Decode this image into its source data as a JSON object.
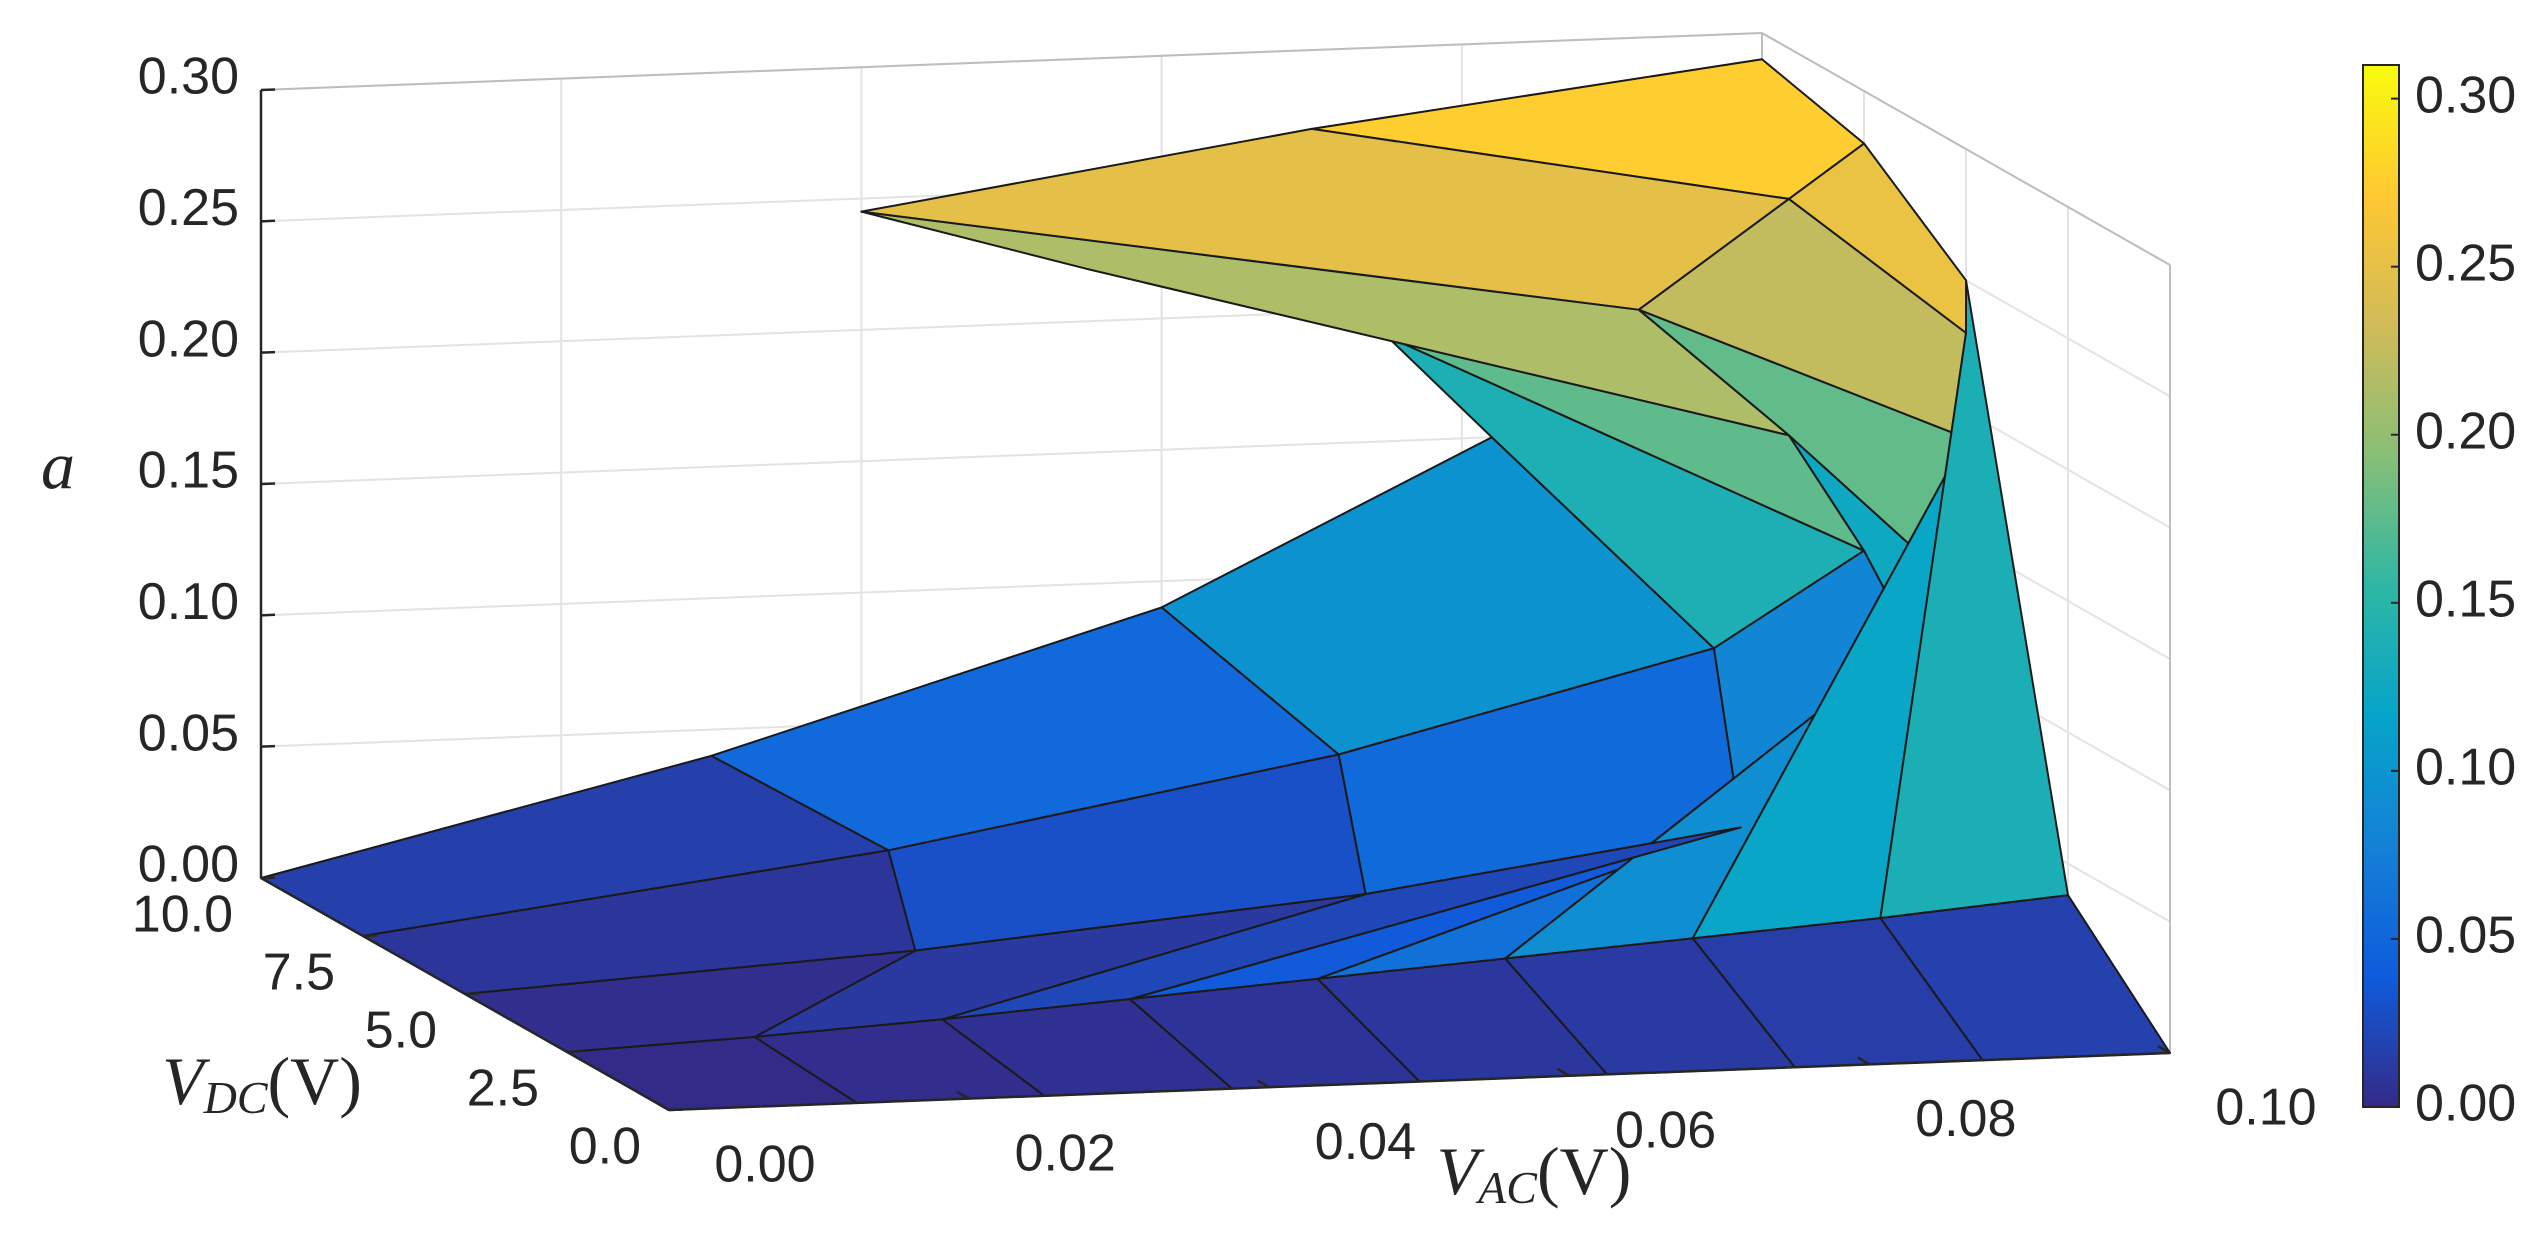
{
  "chart_data": {
    "type": "surface",
    "zlabel": "a",
    "xlabel": {
      "main": "V",
      "sub": "AC",
      "unit": "(V)"
    },
    "ylabel": {
      "main": "V",
      "sub": "DC",
      "unit": "(V)"
    },
    "xlim": [
      0,
      0.1
    ],
    "ylim": [
      0,
      10
    ],
    "zlim": [
      0,
      0.3
    ],
    "clim": [
      0,
      0.31
    ],
    "xticks": [
      {
        "value": 0,
        "label": "0.00"
      },
      0.02,
      0.04,
      0.06,
      0.08,
      {
        "value": 0.1,
        "label": "0.10"
      }
    ],
    "yticks": [
      {
        "value": 0,
        "label": "0.0"
      },
      2.5,
      {
        "value": 5,
        "label": "5.0"
      },
      7.5,
      {
        "value": 10,
        "label": "10.0"
      }
    ],
    "zticks": [
      {
        "value": 0,
        "label": "0.00"
      },
      0.05,
      {
        "value": 0.1,
        "label": "0.10"
      },
      0.15,
      {
        "value": 0.2,
        "label": "0.20"
      },
      0.25,
      {
        "value": 0.3,
        "label": "0.30"
      }
    ],
    "cticks": [
      {
        "value": 0,
        "label": "0.00"
      },
      0.05,
      {
        "value": 0.1,
        "label": "0.10"
      },
      0.15,
      {
        "value": 0.2,
        "label": "0.20"
      },
      0.25,
      {
        "value": 0.3,
        "label": "0.30"
      }
    ],
    "grid": true,
    "colormap": [
      "#352a87",
      "#0f5cdd",
      "#1481d6",
      "#06a4ca",
      "#2eb7a4",
      "#87bf77",
      "#d1bb59",
      "#fec832",
      "#f9fb0e"
    ],
    "edge_color": "#1a1a1a",
    "surface": {
      "y": [
        0,
        2.5,
        5,
        7.5,
        10
      ],
      "x": [
        [
          0,
          0.0125,
          0.025,
          0.0375,
          0.05,
          0.0625,
          0.075,
          0.0875,
          0.1
        ],
        [
          0,
          0.0125,
          0.025,
          0.0375,
          0.05,
          0.0625,
          0.075,
          0.0875,
          0.1
        ],
        [
          0,
          0.03,
          0.06,
          0.085,
          0.1,
          0.1,
          0.1,
          0.1,
          0.1
        ],
        [
          0,
          0.035,
          0.065,
          0.09,
          0.1,
          0.095,
          0.085,
          0.095,
          0.1
        ],
        [
          0,
          0.03,
          0.06,
          0.082,
          0.075,
          0.055,
          0.04,
          0.07,
          0.1
        ]
      ],
      "z": [
        [
          0,
          0,
          0,
          0,
          0,
          0,
          0,
          0,
          0
        ],
        [
          0,
          0.003,
          0.007,
          0.012,
          0.017,
          0.022,
          0.027,
          0.032,
          0.038
        ],
        [
          0,
          0.01,
          0.025,
          0.045,
          0.074,
          0.13,
          0.19,
          0.23,
          0.25
        ],
        [
          0,
          0.025,
          0.055,
          0.09,
          0.125,
          0.17,
          0.22,
          0.26,
          0.28
        ],
        [
          0,
          0.04,
          0.09,
          0.15,
          0.19,
          0.22,
          0.245,
          0.27,
          0.29
        ]
      ]
    }
  }
}
